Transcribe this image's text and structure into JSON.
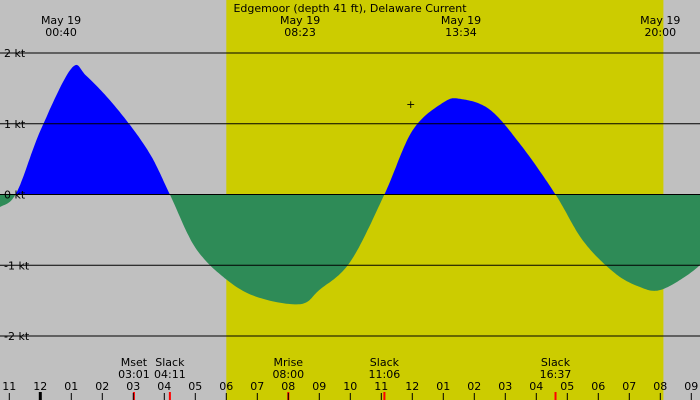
{
  "chart_data": {
    "type": "area",
    "title": "Edgemoor (depth 41 ft), Delaware Current",
    "y_unit": "kt",
    "ylim": [
      -2,
      2
    ],
    "y_ticks": [
      2,
      1,
      0,
      -1,
      -2
    ],
    "y_tick_labels": [
      "2 kt",
      "1 kt",
      "0 kt",
      "-1 kt",
      "-2 kt"
    ],
    "x_range_hours": [
      23.0,
      33.3
    ],
    "daylight": {
      "start": 30.0,
      "end": 44.1
    },
    "top_labels": [
      {
        "date": "May 19",
        "time": "00:40",
        "hour": 24.67
      },
      {
        "date": "May 19",
        "time": "08:23",
        "hour": 32.38
      },
      {
        "date": "May 19",
        "time": "13:34",
        "hour": 37.57
      },
      {
        "date": "May 19",
        "time": "20:00",
        "hour": 44.0
      }
    ],
    "events": [
      {
        "label": "Mset",
        "time": "03:01",
        "hour": 27.02,
        "tick": "red"
      },
      {
        "label": "Slack",
        "time": "04:11",
        "hour": 28.18,
        "tick": "red"
      },
      {
        "label": "Mrise",
        "time": "08:00",
        "hour": 32.0,
        "tick": "red"
      },
      {
        "label": "Slack",
        "time": "11:06",
        "hour": 35.1,
        "tick": "red"
      },
      {
        "label": "Slack",
        "time": "16:37",
        "hour": 40.62,
        "tick": "red"
      }
    ],
    "hour_labels": [
      "11",
      "12",
      "01",
      "02",
      "03",
      "04",
      "05",
      "06",
      "07",
      "08",
      "09",
      "10",
      "11",
      "12",
      "01",
      "02",
      "03",
      "04",
      "05",
      "06",
      "07",
      "08",
      "09"
    ],
    "series": [
      {
        "points": [
          [
            21.5,
            -0.85
          ],
          [
            22.5,
            -0.25
          ],
          [
            23.2,
            0.0
          ],
          [
            24.0,
            0.9
          ],
          [
            25.0,
            1.78
          ],
          [
            25.5,
            1.67
          ],
          [
            26.5,
            1.2
          ],
          [
            27.5,
            0.6
          ],
          [
            28.18,
            0.0
          ],
          [
            29.0,
            -0.75
          ],
          [
            30.0,
            -1.2
          ],
          [
            31.0,
            -1.45
          ],
          [
            32.38,
            -1.55
          ],
          [
            33.0,
            -1.35
          ],
          [
            34.0,
            -0.95
          ],
          [
            35.1,
            0.0
          ],
          [
            36.0,
            0.9
          ],
          [
            37.0,
            1.3
          ],
          [
            37.57,
            1.35
          ],
          [
            38.5,
            1.2
          ],
          [
            39.5,
            0.7
          ],
          [
            40.62,
            0.0
          ],
          [
            41.5,
            -0.65
          ],
          [
            42.5,
            -1.1
          ],
          [
            43.3,
            -1.3
          ],
          [
            44.0,
            -1.35
          ],
          [
            45.0,
            -1.1
          ],
          [
            45.6,
            -0.85
          ]
        ]
      }
    ],
    "colors": {
      "background": "#c0c0c0",
      "daylight": "#cccc00",
      "flood": "#0000ff",
      "ebb": "#2e8b57"
    }
  }
}
